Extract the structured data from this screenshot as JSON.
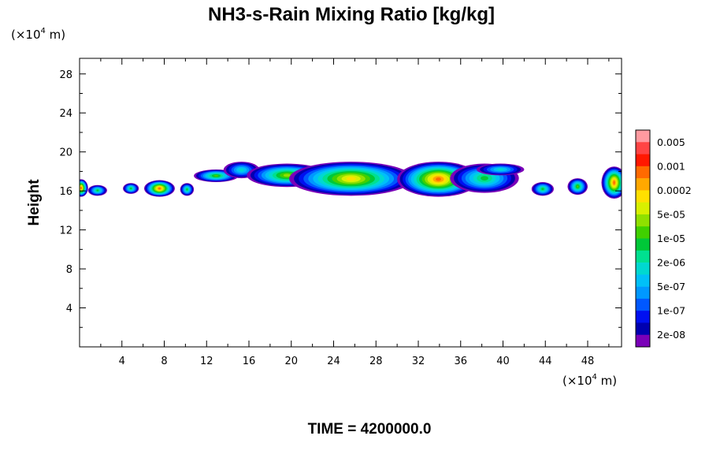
{
  "chart_data": {
    "type": "heatmap",
    "title": "NH3-s-Rain Mixing Ratio [kg/kg]",
    "ylabel": "Height",
    "xlabel": "",
    "y_unit_prefix": "(×10",
    "y_unit_exp": "4",
    "y_unit_suffix": " m)",
    "x_unit_prefix": "(×10",
    "x_unit_exp": "4",
    "x_unit_suffix": " m)",
    "xlim": [
      0,
      51.2
    ],
    "ylim": [
      0,
      29.6
    ],
    "x_ticks": [
      4,
      8,
      12,
      16,
      20,
      24,
      28,
      32,
      36,
      40,
      44,
      48
    ],
    "x_tick_labels": [
      "4",
      "8",
      "12",
      "16",
      "20",
      "24",
      "28",
      "32",
      "36",
      "40",
      "44",
      "48"
    ],
    "y_ticks": [
      4,
      8,
      12,
      16,
      20,
      24,
      28
    ],
    "y_tick_labels": [
      "4",
      "8",
      "12",
      "16",
      "20",
      "24",
      "28"
    ],
    "colorbar": {
      "labels": [
        "0.005",
        "0.001",
        "0.0002",
        "5e-05",
        "1e-05",
        "2e-06",
        "5e-07",
        "1e-07",
        "2e-08"
      ],
      "colors": [
        "#ff9aa0",
        "#ff4444",
        "#ff1800",
        "#ff6a00",
        "#ffa800",
        "#ffe000",
        "#d8f000",
        "#90e000",
        "#40d000",
        "#00c838",
        "#00e090",
        "#00d8d0",
        "#00c0f8",
        "#0098ff",
        "#0058ff",
        "#0010f0",
        "#0000b0",
        "#7a00b8"
      ]
    },
    "regions": [
      {
        "x": [
          -0.5,
          0.8
        ],
        "y": [
          15.4,
          17.2
        ],
        "peak": 15
      },
      {
        "x": [
          0.8,
          2.6
        ],
        "y": [
          15.5,
          16.6
        ],
        "peak": 9
      },
      {
        "x": [
          4.1,
          5.6
        ],
        "y": [
          15.7,
          16.8
        ],
        "peak": 9
      },
      {
        "x": [
          6.1,
          9.0
        ],
        "y": [
          15.4,
          17.1
        ],
        "peak": 15
      },
      {
        "x": [
          9.5,
          10.8
        ],
        "y": [
          15.5,
          16.8
        ],
        "peak": 9
      },
      {
        "x": [
          10.8,
          15.0
        ],
        "y": [
          16.9,
          18.2
        ],
        "peak": 10
      },
      {
        "x": [
          13.6,
          17.0
        ],
        "y": [
          17.3,
          19.0
        ],
        "peak": 7
      },
      {
        "x": [
          15.8,
          23.4
        ],
        "y": [
          16.4,
          18.8
        ],
        "peak": 11
      },
      {
        "x": [
          19.8,
          31.5
        ],
        "y": [
          15.5,
          19.0
        ],
        "peak": 13
      },
      {
        "x": [
          30.0,
          37.8
        ],
        "y": [
          15.4,
          19.0
        ],
        "peak": 15
      },
      {
        "x": [
          35.0,
          41.5
        ],
        "y": [
          15.8,
          18.8
        ],
        "peak": 9
      },
      {
        "x": [
          37.5,
          42.0
        ],
        "y": [
          17.6,
          18.8
        ],
        "peak": 7
      },
      {
        "x": [
          42.7,
          44.8
        ],
        "y": [
          15.5,
          16.9
        ],
        "peak": 9
      },
      {
        "x": [
          46.1,
          48.0
        ],
        "y": [
          15.6,
          17.3
        ],
        "peak": 10
      },
      {
        "x": [
          49.3,
          51.7
        ],
        "y": [
          15.2,
          18.5
        ],
        "peak": 15
      }
    ]
  },
  "time_label": "TIME = 4200000.0"
}
